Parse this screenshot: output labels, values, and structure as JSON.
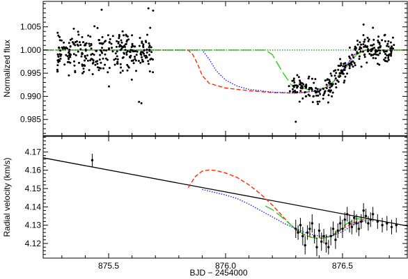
{
  "chart_data": [
    {
      "type": "scatter",
      "ylabel": "Normalized flux",
      "xlim": [
        875.22,
        876.78
      ],
      "ylim": [
        0.9815,
        1.0105
      ],
      "x_ticks": [
        875.5,
        876.0,
        876.5
      ],
      "y_ticks": [
        0.985,
        0.99,
        0.995,
        1.0,
        1.005
      ],
      "y_tick_labels": [
        "0.985",
        "0.990",
        "0.995",
        "1.000",
        "1.005"
      ],
      "colors": {
        "points": "#000000",
        "model_red": "#ff2a00",
        "model_blue": "#1a1aff",
        "model_green": "#2ecc1a",
        "baseline": "#1a9a1a"
      },
      "observed_segments": [
        {
          "x_start": 875.28,
          "x_end": 875.69,
          "mean": 0.9995,
          "scatter": 0.0037,
          "n_points": 300
        },
        {
          "x_start": 876.27,
          "x_end": 876.72,
          "n_points": 280,
          "scatter": 0.0024
        }
      ],
      "outliers": [
        {
          "x": 875.63,
          "y": 0.9888
        },
        {
          "x": 875.64,
          "y": 0.9885
        },
        {
          "x": 875.67,
          "y": 1.009
        },
        {
          "x": 875.69,
          "y": 1.0085
        },
        {
          "x": 875.47,
          "y": 1.0087
        },
        {
          "x": 876.3,
          "y": 0.9845
        },
        {
          "x": 876.59,
          "y": 1.0055
        },
        {
          "x": 876.63,
          "y": 1.0048
        }
      ],
      "series": [
        {
          "style": "dashed",
          "color": "#ff2a00",
          "x": [
            875.22,
            875.84,
            875.86,
            875.88,
            875.9,
            875.93,
            876.0,
            876.1,
            876.2,
            876.3,
            876.4,
            876.45,
            876.5,
            876.55,
            876.6,
            876.78
          ],
          "y": [
            1.0,
            1.0,
            0.999,
            0.997,
            0.9945,
            0.9928,
            0.9918,
            0.9912,
            0.9908,
            0.9907,
            0.9912,
            0.9925,
            0.9955,
            0.999,
            1.0,
            1.0
          ]
        },
        {
          "style": "dotted",
          "color": "#1a1aff",
          "x": [
            875.22,
            875.9,
            875.93,
            875.96,
            876.0,
            876.05,
            876.1,
            876.2,
            876.3,
            876.4,
            876.45,
            876.5,
            876.55,
            876.6,
            876.78
          ],
          "y": [
            1.0,
            1.0,
            0.998,
            0.9955,
            0.9935,
            0.9922,
            0.9915,
            0.9909,
            0.9907,
            0.9912,
            0.9925,
            0.9955,
            0.999,
            1.0,
            1.0
          ]
        },
        {
          "style": "long-dash",
          "color": "#2ecc1a",
          "x": [
            875.22,
            876.17,
            876.2,
            876.24,
            876.28,
            876.35,
            876.42,
            876.47,
            876.52,
            876.56,
            876.6,
            876.78
          ],
          "y": [
            1.0,
            1.0,
            0.999,
            0.9955,
            0.9925,
            0.9915,
            0.9917,
            0.9935,
            0.9965,
            0.999,
            1.0,
            1.0
          ]
        },
        {
          "style": "dotted",
          "color": "#1a9a1a",
          "x": [
            875.22,
            876.78
          ],
          "y": [
            1.0,
            1.0
          ]
        }
      ]
    },
    {
      "type": "scatter",
      "xlabel": "BJD − 2454000",
      "ylabel": "Radial velocity (km/s)",
      "xlim": [
        875.22,
        876.78
      ],
      "ylim": [
        4.112,
        4.1785
      ],
      "x_ticks": [
        875.5,
        876.0,
        876.5
      ],
      "x_tick_labels": [
        "875.5",
        "876.0",
        "876.5"
      ],
      "y_ticks": [
        4.12,
        4.13,
        4.14,
        4.15,
        4.16,
        4.17
      ],
      "y_tick_labels": [
        "4.12",
        "4.13",
        "4.14",
        "4.15",
        "4.16",
        "4.17"
      ],
      "points": [
        {
          "x": 875.43,
          "y": 4.1655,
          "err": 0.0035
        },
        {
          "x": 876.3,
          "y": 4.128,
          "err": 0.005
        },
        {
          "x": 876.31,
          "y": 4.126,
          "err": 0.004
        },
        {
          "x": 876.32,
          "y": 4.13,
          "err": 0.004
        },
        {
          "x": 876.33,
          "y": 4.124,
          "err": 0.005
        },
        {
          "x": 876.34,
          "y": 4.119,
          "err": 0.005
        },
        {
          "x": 876.35,
          "y": 4.126,
          "err": 0.004
        },
        {
          "x": 876.36,
          "y": 4.128,
          "err": 0.004
        },
        {
          "x": 876.37,
          "y": 4.131,
          "err": 0.005
        },
        {
          "x": 876.38,
          "y": 4.124,
          "err": 0.004
        },
        {
          "x": 876.39,
          "y": 4.118,
          "err": 0.005
        },
        {
          "x": 876.4,
          "y": 4.127,
          "err": 0.004
        },
        {
          "x": 876.41,
          "y": 4.121,
          "err": 0.005
        },
        {
          "x": 876.42,
          "y": 4.124,
          "err": 0.004
        },
        {
          "x": 876.43,
          "y": 4.12,
          "err": 0.005
        },
        {
          "x": 876.44,
          "y": 4.118,
          "err": 0.004
        },
        {
          "x": 876.45,
          "y": 4.124,
          "err": 0.005
        },
        {
          "x": 876.46,
          "y": 4.128,
          "err": 0.004
        },
        {
          "x": 876.47,
          "y": 4.122,
          "err": 0.005
        },
        {
          "x": 876.48,
          "y": 4.127,
          "err": 0.004
        },
        {
          "x": 876.49,
          "y": 4.131,
          "err": 0.004
        },
        {
          "x": 876.5,
          "y": 4.128,
          "err": 0.005
        },
        {
          "x": 876.51,
          "y": 4.133,
          "err": 0.004
        },
        {
          "x": 876.52,
          "y": 4.136,
          "err": 0.004
        },
        {
          "x": 876.53,
          "y": 4.131,
          "err": 0.005
        },
        {
          "x": 876.54,
          "y": 4.129,
          "err": 0.004
        },
        {
          "x": 876.55,
          "y": 4.134,
          "err": 0.004
        },
        {
          "x": 876.56,
          "y": 4.131,
          "err": 0.005
        },
        {
          "x": 876.57,
          "y": 4.128,
          "err": 0.004
        },
        {
          "x": 876.58,
          "y": 4.132,
          "err": 0.004
        },
        {
          "x": 876.59,
          "y": 4.138,
          "err": 0.004
        },
        {
          "x": 876.6,
          "y": 4.135,
          "err": 0.004
        },
        {
          "x": 876.61,
          "y": 4.131,
          "err": 0.004
        },
        {
          "x": 876.62,
          "y": 4.133,
          "err": 0.004
        },
        {
          "x": 876.63,
          "y": 4.136,
          "err": 0.004
        },
        {
          "x": 876.65,
          "y": 4.132,
          "err": 0.004
        },
        {
          "x": 876.67,
          "y": 4.13,
          "err": 0.004
        },
        {
          "x": 876.69,
          "y": 4.131,
          "err": 0.004
        },
        {
          "x": 876.71,
          "y": 4.129,
          "err": 0.004
        },
        {
          "x": 876.73,
          "y": 4.13,
          "err": 0.004
        }
      ],
      "series": [
        {
          "style": "solid",
          "color": "#000000",
          "x": [
            875.22,
            876.78
          ],
          "y": [
            4.1668,
            4.1295
          ]
        },
        {
          "style": "dashed",
          "color": "#ff2a00",
          "x": [
            875.84,
            875.87,
            875.9,
            875.93,
            875.96,
            876.0,
            876.05,
            876.1,
            876.15,
            876.2,
            876.25,
            876.28,
            876.31,
            876.34,
            876.38,
            876.42,
            876.46,
            876.5,
            876.55,
            876.6
          ],
          "y": [
            4.1505,
            4.1565,
            4.1595,
            4.1602,
            4.1598,
            4.1585,
            4.156,
            4.152,
            4.147,
            4.141,
            4.134,
            4.13,
            4.1265,
            4.1245,
            4.123,
            4.123,
            4.1245,
            4.128,
            4.1315,
            4.133
          ]
        },
        {
          "style": "dotted",
          "color": "#1a1aff",
          "x": [
            875.9,
            875.95,
            876.0,
            876.05,
            876.1,
            876.15,
            876.2,
            876.25,
            876.3,
            876.35,
            876.4,
            876.45,
            876.5,
            876.55,
            876.6
          ],
          "y": [
            4.1495,
            4.148,
            4.1465,
            4.1445,
            4.1415,
            4.138,
            4.1345,
            4.131,
            4.128,
            4.1255,
            4.124,
            4.124,
            4.1265,
            4.1305,
            4.1325
          ]
        },
        {
          "style": "long-dash",
          "color": "#2ecc1a",
          "x": [
            876.17,
            876.2,
            876.24,
            876.28,
            876.32,
            876.36,
            876.4,
            876.44,
            876.48,
            876.52,
            876.56,
            876.6
          ],
          "y": [
            4.1405,
            4.1385,
            4.1345,
            4.13,
            4.126,
            4.1235,
            4.1225,
            4.1235,
            4.1265,
            4.131,
            4.1335,
            4.133
          ]
        }
      ]
    }
  ]
}
